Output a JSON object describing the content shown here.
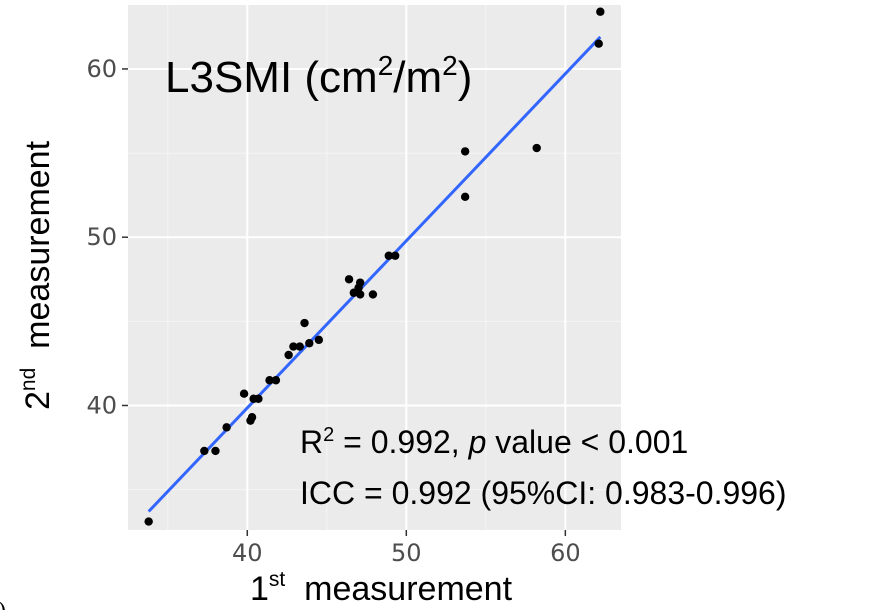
{
  "chart_data": {
    "type": "scatter",
    "title": {
      "main": "L3SMI (cm",
      "sup1": "2",
      "mid": "/m",
      "sup2": "2",
      "end": ")"
    },
    "xlabel": {
      "main": "1",
      "sup": "st",
      "rest": "  measurement"
    },
    "ylabel": {
      "main": "2",
      "sup": "nd",
      "rest": "  measurement"
    },
    "xlim": [
      32.5,
      63.5
    ],
    "ylim": [
      32.6,
      63.8
    ],
    "x_ticks": [
      40,
      50,
      60
    ],
    "x_tick_labels": [
      "40",
      "50",
      "60"
    ],
    "y_ticks": [
      40,
      50,
      60
    ],
    "y_tick_labels": [
      "40",
      "50",
      "60"
    ],
    "grid": true,
    "points": [
      {
        "x": 33.8,
        "y": 33.1
      },
      {
        "x": 37.3,
        "y": 37.3
      },
      {
        "x": 38.0,
        "y": 37.3
      },
      {
        "x": 38.7,
        "y": 38.7
      },
      {
        "x": 39.8,
        "y": 40.7
      },
      {
        "x": 40.2,
        "y": 39.1
      },
      {
        "x": 40.3,
        "y": 39.3
      },
      {
        "x": 40.4,
        "y": 40.4
      },
      {
        "x": 40.7,
        "y": 40.4
      },
      {
        "x": 41.4,
        "y": 41.5
      },
      {
        "x": 41.8,
        "y": 41.5
      },
      {
        "x": 42.6,
        "y": 43.0
      },
      {
        "x": 42.9,
        "y": 43.5
      },
      {
        "x": 43.3,
        "y": 43.5
      },
      {
        "x": 43.6,
        "y": 44.9
      },
      {
        "x": 43.9,
        "y": 43.7
      },
      {
        "x": 44.5,
        "y": 43.9
      },
      {
        "x": 46.4,
        "y": 47.5
      },
      {
        "x": 46.7,
        "y": 46.7
      },
      {
        "x": 47.0,
        "y": 47.0
      },
      {
        "x": 47.1,
        "y": 47.3
      },
      {
        "x": 47.1,
        "y": 46.6
      },
      {
        "x": 47.9,
        "y": 46.6
      },
      {
        "x": 48.9,
        "y": 48.9
      },
      {
        "x": 49.3,
        "y": 48.9
      },
      {
        "x": 53.7,
        "y": 55.1
      },
      {
        "x": 53.7,
        "y": 52.4
      },
      {
        "x": 58.2,
        "y": 55.3
      },
      {
        "x": 62.2,
        "y": 63.4
      },
      {
        "x": 62.1,
        "y": 61.5
      }
    ],
    "fit_line": {
      "x": [
        33.8,
        62.2
      ],
      "y": [
        33.7,
        61.9
      ],
      "color": "#3366ff"
    },
    "annotations": [
      {
        "pre": "R",
        "sup": "2",
        "mid": " = 0.992, ",
        "italic": "p",
        "post": " value < 0.001"
      },
      {
        "text": "ICC = 0.992 (95%CI: 0.983-0.996)"
      }
    ],
    "panel_label": "b)",
    "colors": {
      "panel_bg": "#ebebeb",
      "grid_major": "#ffffff",
      "point": "#000000",
      "line": "#3366ff",
      "tick_text": "#4d4d4d"
    }
  }
}
